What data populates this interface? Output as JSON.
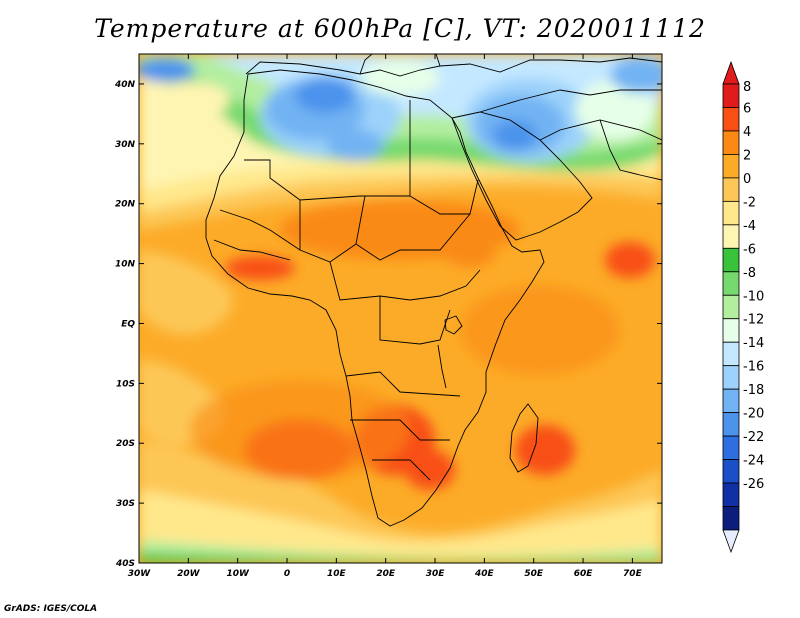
{
  "title": "Temperature at 600hPa [C], VT: 2020011112",
  "credit": "GrADS: IGES/COLA",
  "map": {
    "lon_range": [
      -30,
      76
    ],
    "lat_range": [
      -40,
      45
    ],
    "lon_ticks": [
      {
        "lon": -30,
        "label": "30W"
      },
      {
        "lon": -20,
        "label": "20W"
      },
      {
        "lon": -10,
        "label": "10W"
      },
      {
        "lon": 0,
        "label": "0"
      },
      {
        "lon": 10,
        "label": "10E"
      },
      {
        "lon": 20,
        "label": "20E"
      },
      {
        "lon": 30,
        "label": "30E"
      },
      {
        "lon": 40,
        "label": "40E"
      },
      {
        "lon": 50,
        "label": "50E"
      },
      {
        "lon": 60,
        "label": "60E"
      },
      {
        "lon": 70,
        "label": "70E"
      }
    ],
    "lat_ticks": [
      {
        "lat": 40,
        "label": "40N"
      },
      {
        "lat": 30,
        "label": "30N"
      },
      {
        "lat": 20,
        "label": "20N"
      },
      {
        "lat": 10,
        "label": "10N"
      },
      {
        "lat": 0,
        "label": "EQ"
      },
      {
        "lat": -10,
        "label": "10S"
      },
      {
        "lat": -20,
        "label": "20S"
      },
      {
        "lat": -30,
        "label": "30S"
      },
      {
        "lat": -40,
        "label": "40S"
      }
    ]
  },
  "colorbar": {
    "labels": [
      "8",
      "6",
      "4",
      "2",
      "0",
      "-2",
      "-4",
      "-6",
      "-8",
      "-10",
      "-12",
      "-14",
      "-16",
      "-18",
      "-20",
      "-22",
      "-24",
      "-26"
    ],
    "colors": [
      "#e11b1b",
      "#f84f15",
      "#fa8a14",
      "#fcab28",
      "#fdc757",
      "#ffe88c",
      "#fff5b2",
      "#38c33a",
      "#76d96e",
      "#b3ee9f",
      "#e6ffe8",
      "#c4e8ff",
      "#9cd2fb",
      "#72b3f3",
      "#4c93ec",
      "#2d6fe0",
      "#1b4fc8",
      "#1030a4",
      "#0c1d7c"
    ],
    "end_top": "#e11b1b",
    "end_bottom": "#e8ecff"
  }
}
